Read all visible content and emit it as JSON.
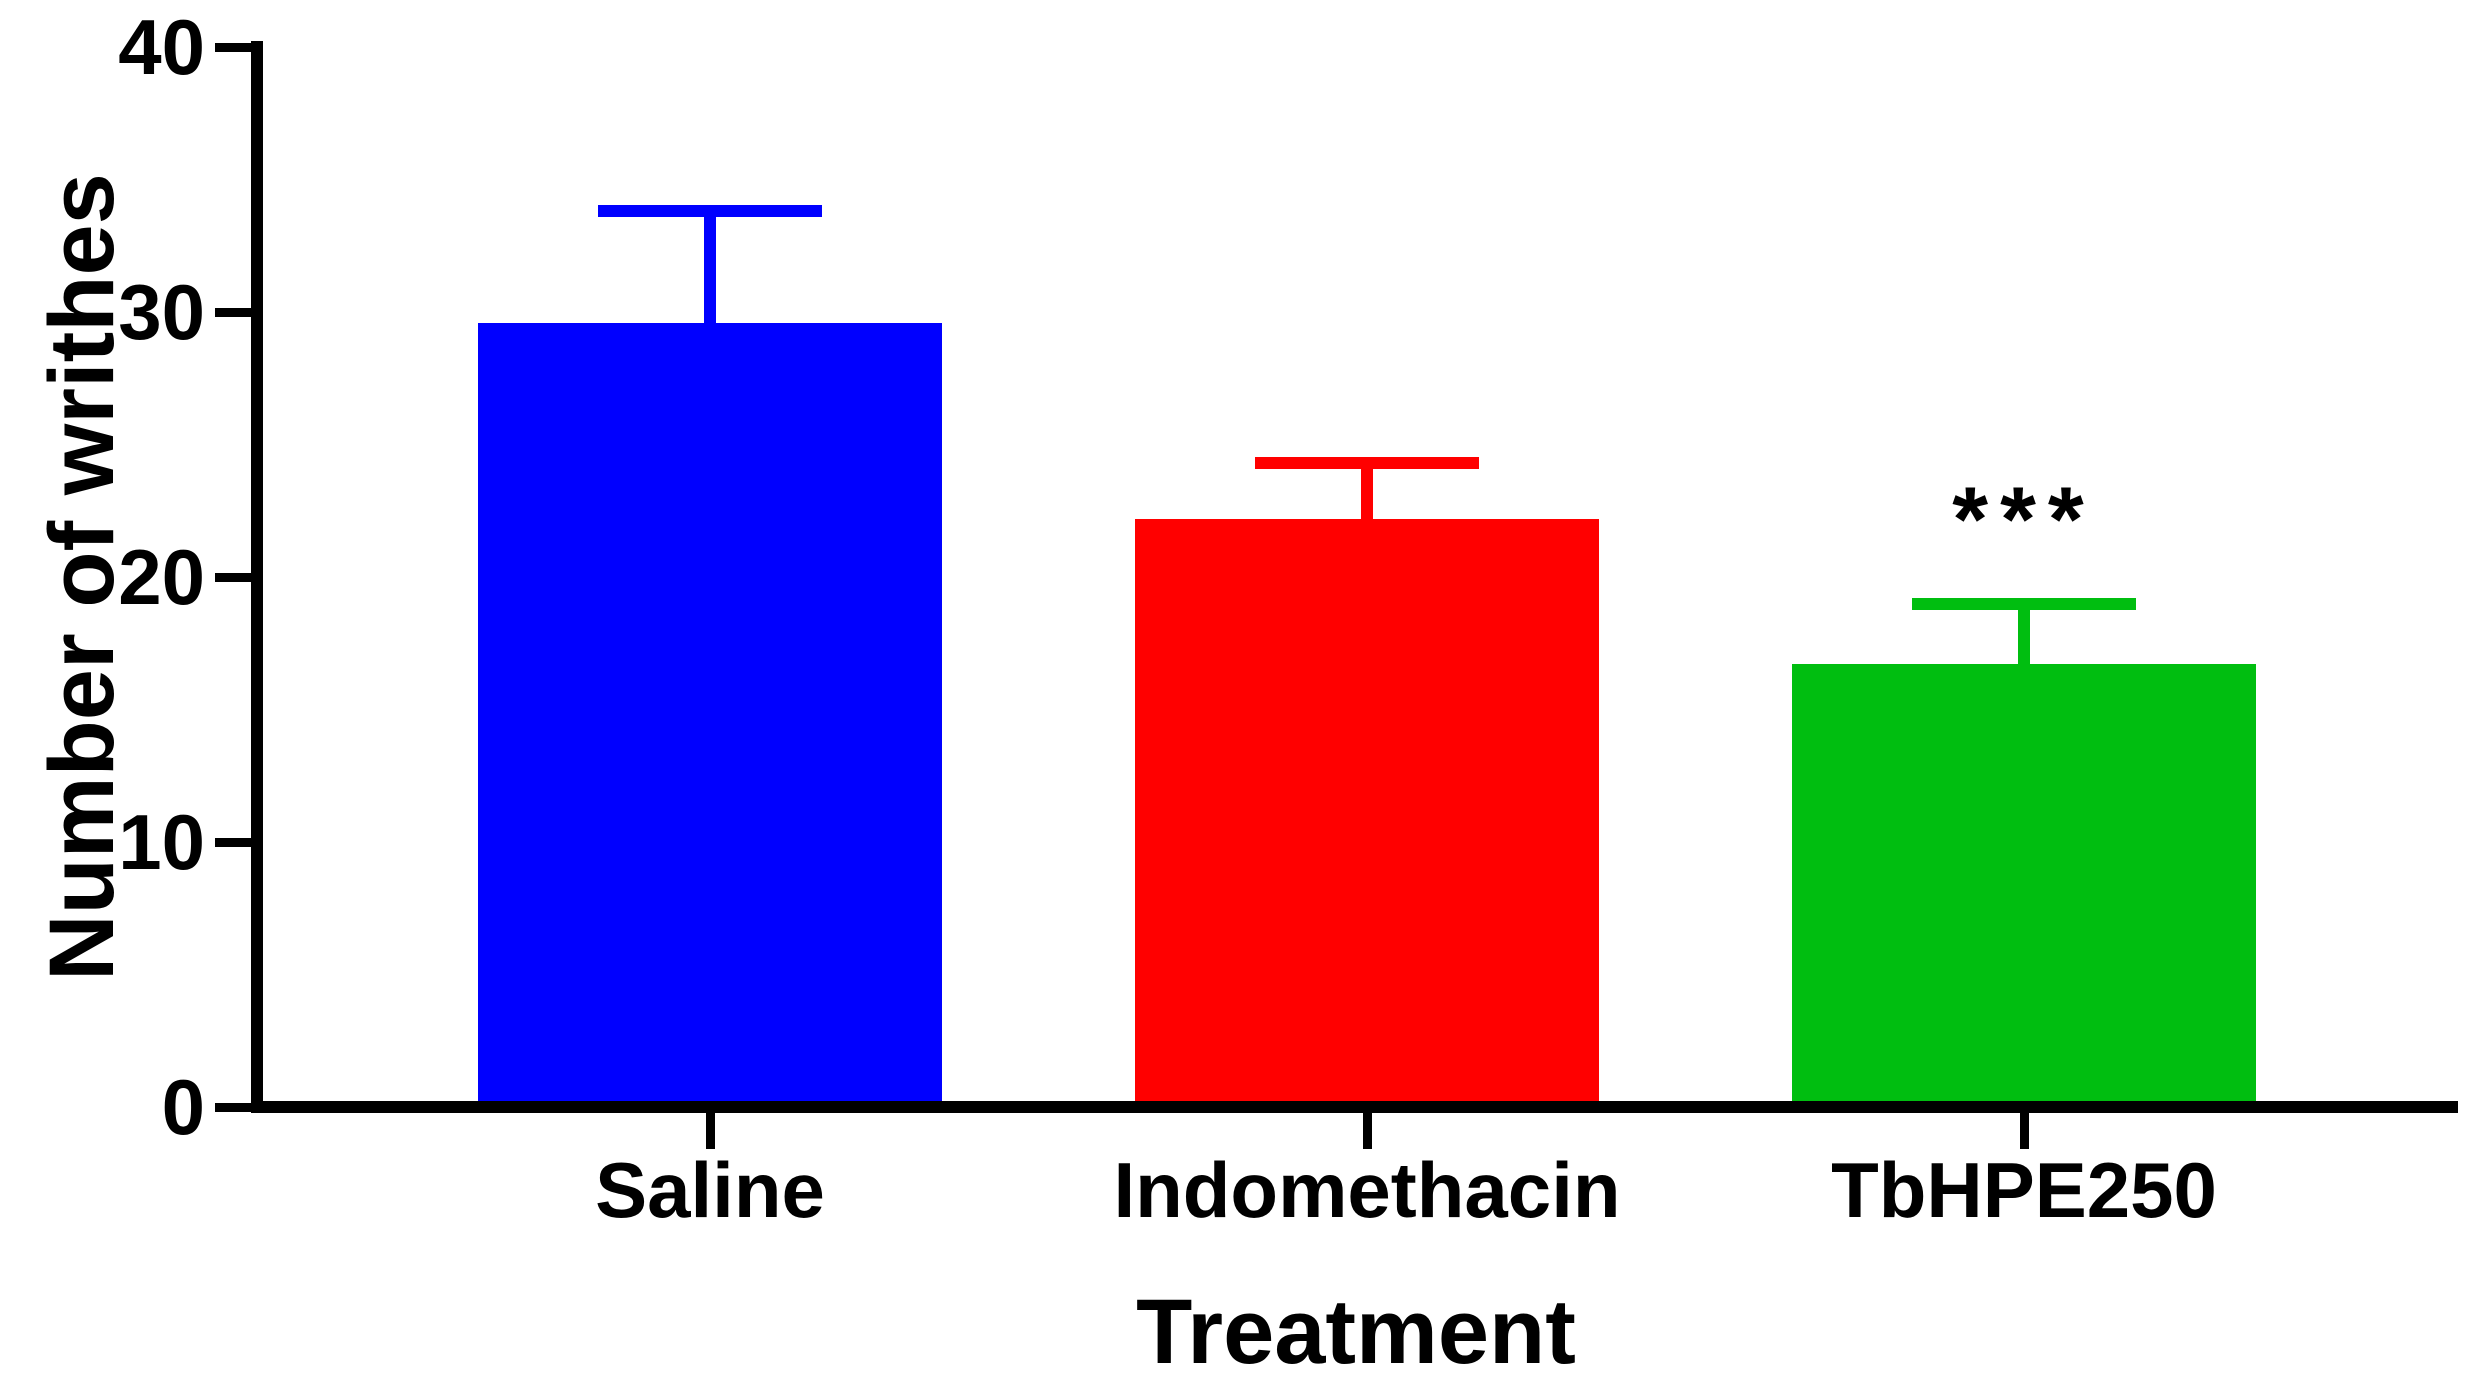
{
  "figure": {
    "background_color": "#FFFFFF",
    "axis_color": "#000000",
    "text_color": "#000000"
  },
  "chart_data": {
    "type": "bar",
    "title": "",
    "xlabel": "Treatment",
    "ylabel": "Number of writhes",
    "categories": [
      "Saline",
      "Indomethacin",
      "TbHPE250"
    ],
    "values": [
      29.6,
      22.2,
      16.7
    ],
    "errors_upper": [
      4.2,
      2.1,
      2.3
    ],
    "bar_colors": [
      "#0000FF",
      "#FF0000",
      "#00BE10"
    ],
    "ylim": [
      0,
      40
    ],
    "yticks": [
      0,
      10,
      20,
      30,
      40
    ],
    "ytick_labels": [
      "0",
      "10",
      "20",
      "30",
      "40"
    ],
    "grid": false,
    "legend": null,
    "annotations": [
      {
        "text": "***",
        "category": "TbHPE250"
      }
    ]
  }
}
